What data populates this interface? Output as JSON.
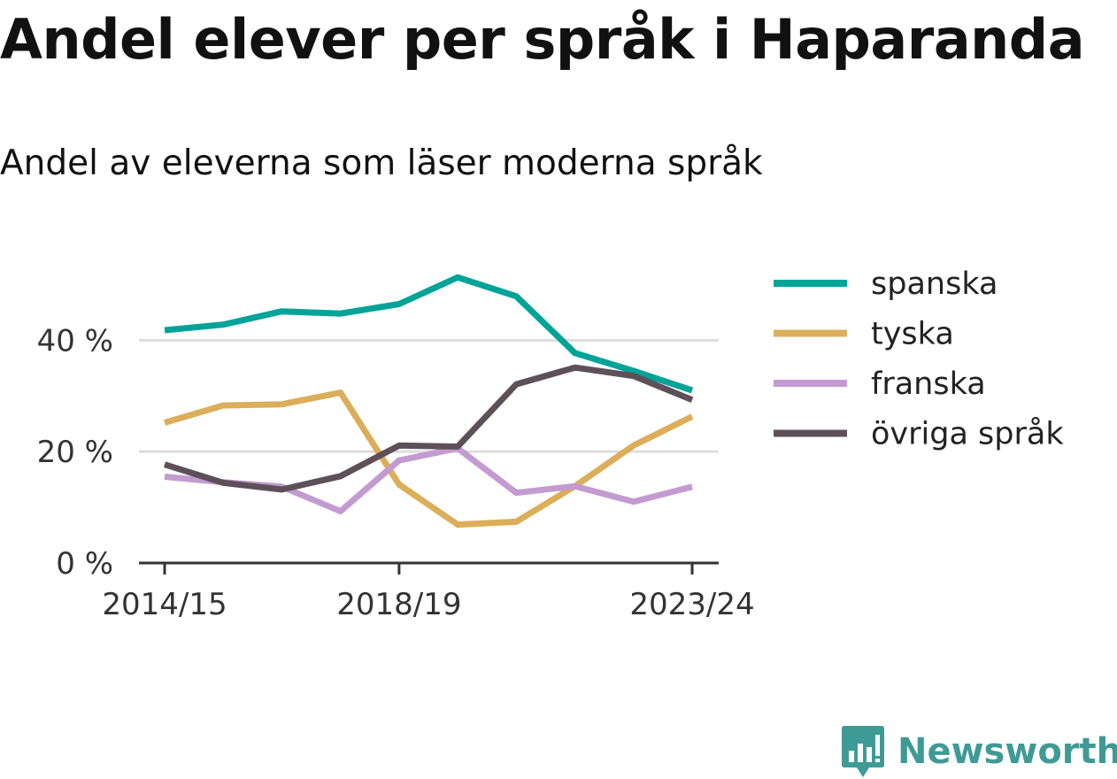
{
  "title": "Andel elever per språk i Haparanda",
  "subtitle": "Andel av eleverna som läser moderna språk",
  "brand": {
    "name": "Newsworthy",
    "color": "#3f9a96",
    "icon": "newsworthy-logo-icon"
  },
  "colors": {
    "spanska": "#00a398",
    "tyska": "#dcae5a",
    "franska": "#c39bd1",
    "ovriga": "#5e5059",
    "grid": "#dddddd",
    "axis": "#333333"
  },
  "chart_data": {
    "type": "line",
    "x": [
      "2014/15",
      "2015/16",
      "2016/17",
      "2017/18",
      "2018/19",
      "2019/20",
      "2020/21",
      "2021/22",
      "2022/23",
      "2023/24"
    ],
    "x_tick_labels": [
      "2014/15",
      "2018/19",
      "2023/24"
    ],
    "y_ticks": [
      0,
      20,
      40
    ],
    "y_tick_labels": [
      "0 %",
      "20 %",
      "40 %"
    ],
    "ylim": [
      0,
      55
    ],
    "grid": true,
    "legend_position": "right",
    "series": [
      {
        "name": "spanska",
        "color": "#00a398",
        "values": [
          41.8,
          42.8,
          45.2,
          44.8,
          46.5,
          51.3,
          47.9,
          37.7,
          34.5,
          31.0
        ]
      },
      {
        "name": "tyska",
        "color": "#dcae5a",
        "values": [
          25.2,
          28.3,
          28.5,
          30.6,
          14.1,
          6.9,
          7.4,
          13.8,
          21.1,
          26.3
        ]
      },
      {
        "name": "franska",
        "color": "#c39bd1",
        "values": [
          15.5,
          14.5,
          13.7,
          9.3,
          18.4,
          20.6,
          12.6,
          13.8,
          11.0,
          13.7
        ]
      },
      {
        "name": "övriga språk",
        "color": "#5e5059",
        "values": [
          17.7,
          14.4,
          13.2,
          15.6,
          21.1,
          20.9,
          32.1,
          35.1,
          33.6,
          29.3
        ]
      }
    ]
  }
}
